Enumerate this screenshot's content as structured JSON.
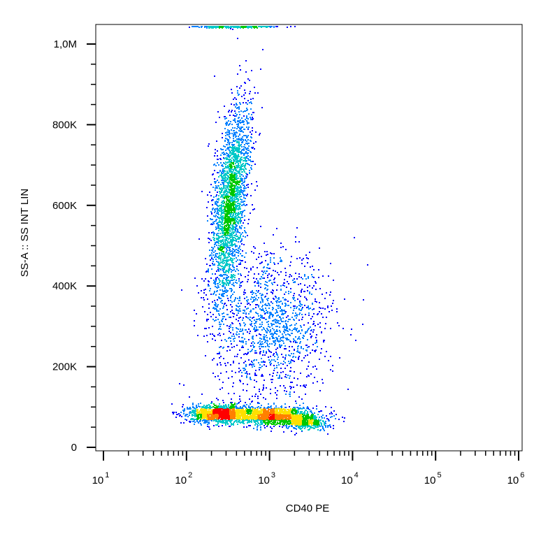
{
  "chart_data": {
    "type": "scatter",
    "style": "density dot plot (flow cytometry), colored blue to red by point density",
    "xlabel": "CD40 PE",
    "ylabel": "SS-A :: SS INT LIN",
    "x_scale": "log",
    "xlim": [
      10,
      1000000
    ],
    "ylim": [
      0,
      1050000
    ],
    "x_tick_labels": [
      {
        "value": 10,
        "base": "10",
        "exp": "1"
      },
      {
        "value": 100,
        "base": "10",
        "exp": "2"
      },
      {
        "value": 1000,
        "base": "10",
        "exp": "3"
      },
      {
        "value": 10000,
        "base": "10",
        "exp": "4"
      },
      {
        "value": 100000,
        "base": "10",
        "exp": "5"
      },
      {
        "value": 1000000,
        "base": "10",
        "exp": "6"
      }
    ],
    "y_tick_labels": [
      {
        "value": 0,
        "label": "0"
      },
      {
        "value": 200000,
        "label": "200K"
      },
      {
        "value": 400000,
        "label": "400K"
      },
      {
        "value": 600000,
        "label": "600K"
      },
      {
        "value": 800000,
        "label": "800K"
      },
      {
        "value": 1000000,
        "label": "1,0M"
      }
    ],
    "populations": [
      {
        "x_center": 330,
        "y_center": 600000,
        "x_spread_log": 0.1,
        "y_spread": 220000,
        "n": 2600,
        "peak_y": 650000
      },
      {
        "x_center": 250,
        "y_center": 85000,
        "x_spread_log": 0.18,
        "y_spread": 22000,
        "n": 1500
      },
      {
        "x_center": 1100,
        "y_center": 80000,
        "x_spread_log": 0.22,
        "y_spread": 22000,
        "n": 1400
      },
      {
        "x_center": 2700,
        "y_center": 65000,
        "x_spread_log": 0.14,
        "y_spread": 20000,
        "n": 420
      },
      {
        "x_center": 1100,
        "y_center": 300000,
        "x_spread_log": 0.35,
        "y_spread": 180000,
        "n": 1400
      },
      {
        "x_center": 400,
        "y_center": 1045000,
        "x_spread_log": 0.25,
        "y_spread": 3000,
        "n": 260
      }
    ],
    "density_colors": [
      "#0000ff",
      "#0080ff",
      "#00c8c8",
      "#00c800",
      "#ffe000",
      "#ff8000",
      "#ff0000"
    ],
    "grid": false,
    "legend": "none"
  }
}
